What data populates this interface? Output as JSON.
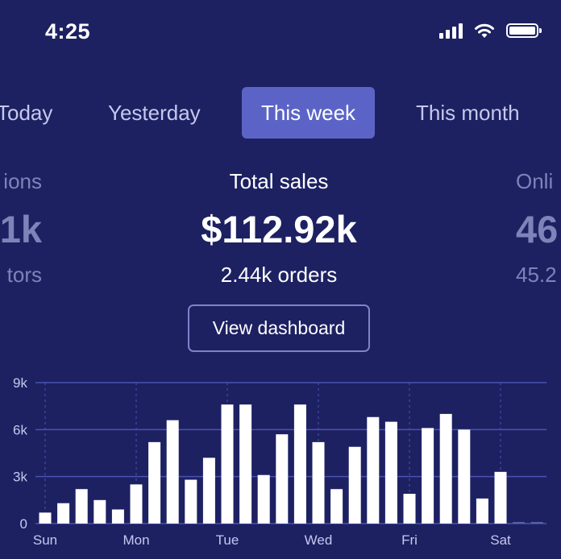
{
  "status_bar": {
    "time": "4:25"
  },
  "tabs": [
    {
      "label": "Today",
      "active": false
    },
    {
      "label": "Yesterday",
      "active": false
    },
    {
      "label": "This week",
      "active": true
    },
    {
      "label": "This month",
      "active": false
    }
  ],
  "stats": {
    "left": {
      "label": "ions",
      "value": "1k",
      "sub": "tors"
    },
    "center": {
      "label": "Total sales",
      "value": "$112.92k",
      "sub": "2.44k orders"
    },
    "right": {
      "label": "Onli",
      "value": "46",
      "sub": "45.2"
    }
  },
  "actions": {
    "view_dashboard": "View dashboard"
  },
  "colors": {
    "background": "#1d2162",
    "active_tab": "#5b64c6",
    "bar": "#ffffff",
    "gridline": "#4a52b0",
    "muted_text": "#7d84b8"
  },
  "icons": {
    "signal": "cellular-signal-icon",
    "wifi": "wifi-icon",
    "battery": "battery-icon"
  },
  "chart_data": {
    "type": "bar",
    "title": "",
    "xlabel": "",
    "ylabel": "",
    "ylim": [
      0,
      9000
    ],
    "y_ticks": [
      0,
      3000,
      6000,
      9000
    ],
    "y_tick_labels": [
      "0",
      "3k",
      "6k",
      "9k"
    ],
    "x_tick_labels": [
      "Sun",
      "Mon",
      "Tue",
      "Wed",
      "Fri",
      "Sat"
    ],
    "x_tick_bar_index": [
      0,
      5,
      10,
      15,
      20,
      25
    ],
    "values": [
      700,
      1300,
      2200,
      1500,
      900,
      2500,
      5200,
      6600,
      2800,
      4200,
      7600,
      7600,
      3100,
      5700,
      7600,
      5200,
      2200,
      4900,
      6800,
      6500,
      1900,
      6100,
      7000,
      6000,
      1600,
      3300,
      100,
      100
    ],
    "grid": true
  }
}
